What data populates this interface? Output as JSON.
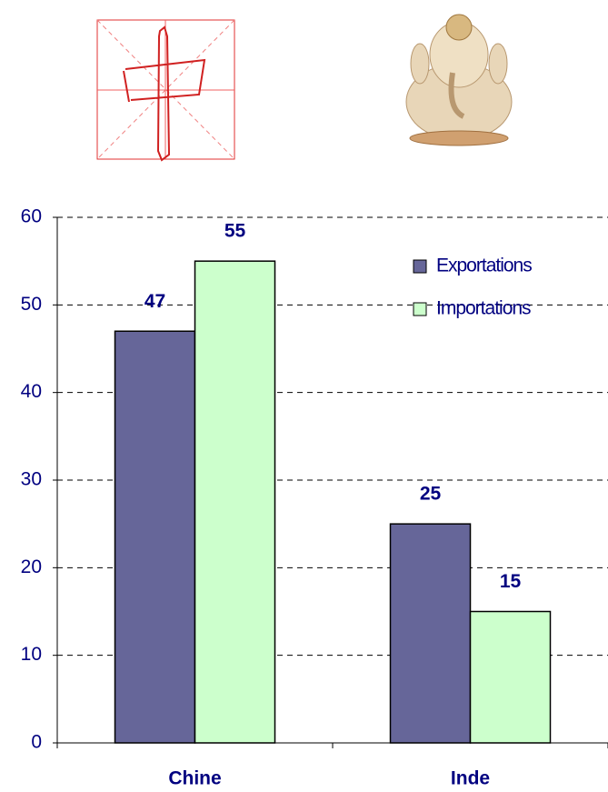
{
  "chart_data": {
    "type": "bar",
    "categories": [
      "Chine",
      "Inde"
    ],
    "series": [
      {
        "name": "Exportations",
        "color": "#666699",
        "values": [
          47,
          25
        ]
      },
      {
        "name": "Importations",
        "color": "#ccffcc",
        "values": [
          55,
          15
        ]
      }
    ],
    "ylim": [
      0,
      60
    ],
    "yticks": [
      0,
      10,
      20,
      30,
      40,
      50,
      60
    ],
    "grid": true,
    "legend": "upper right"
  }
}
